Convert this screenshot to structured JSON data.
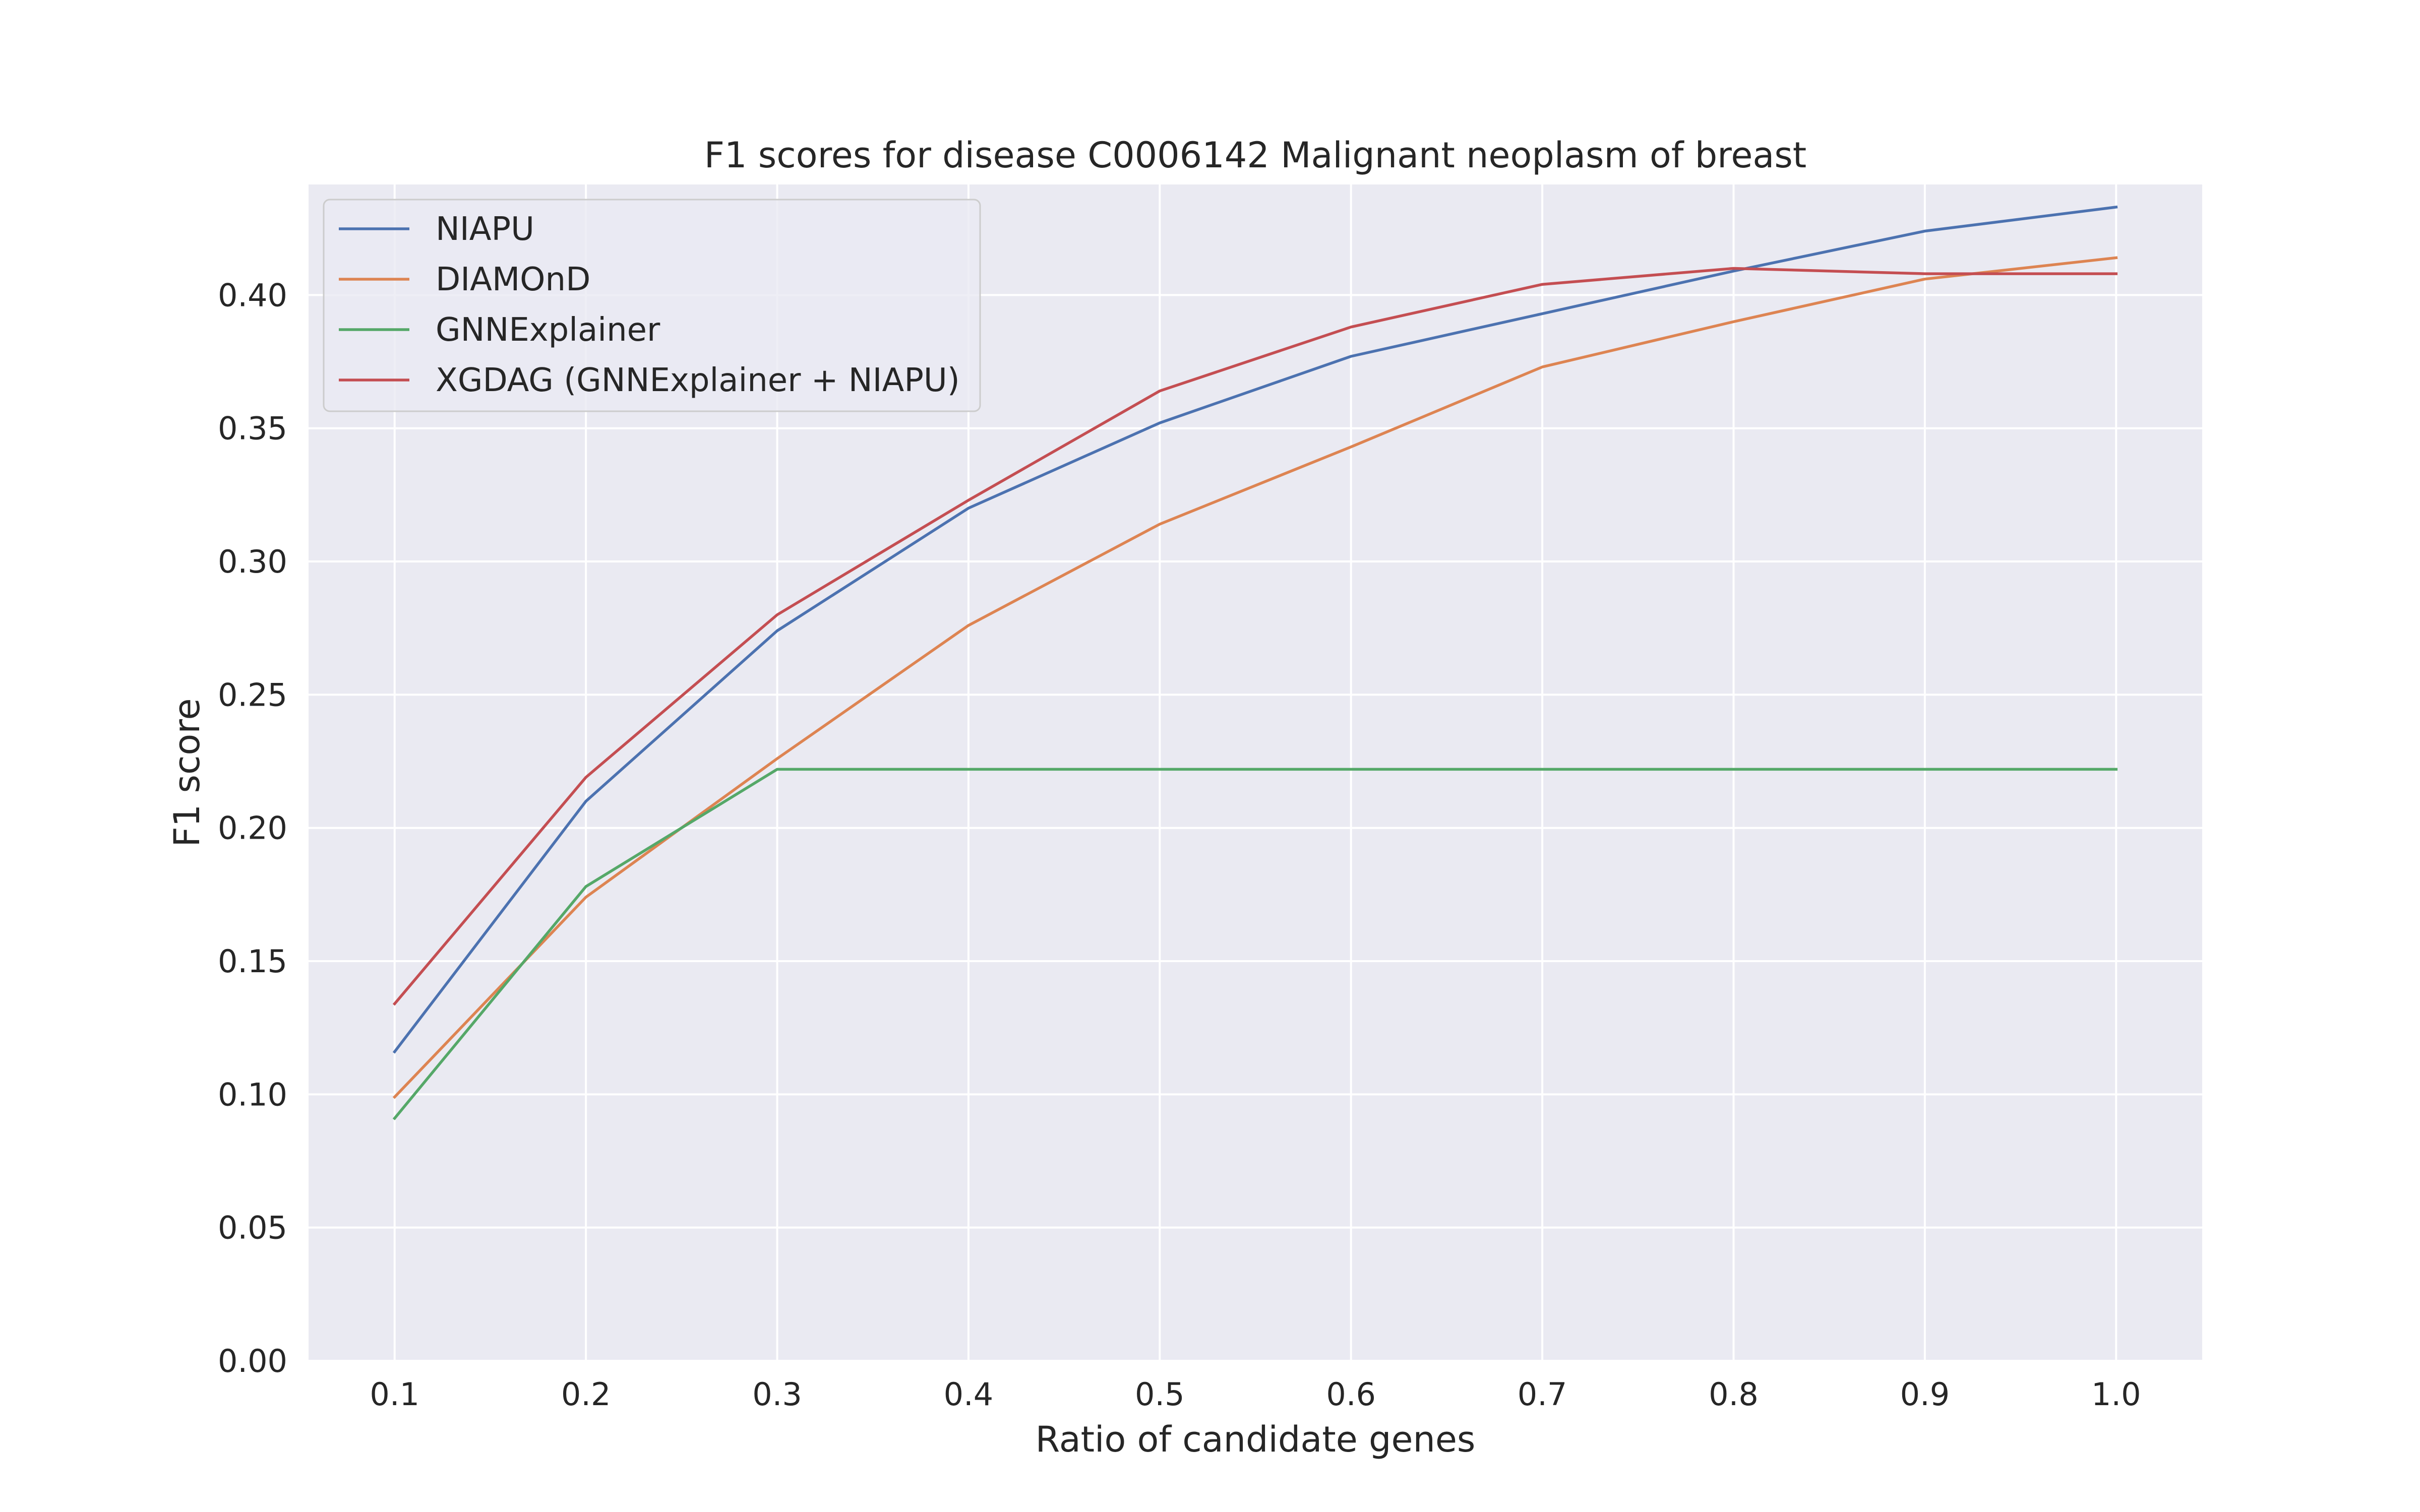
{
  "chart_data": {
    "type": "line",
    "title": "F1 scores for disease C0006142 Malignant neoplasm of breast",
    "xlabel": "Ratio of candidate genes",
    "ylabel": "F1 score",
    "x": [
      0.1,
      0.2,
      0.3,
      0.4,
      0.5,
      0.6,
      0.7,
      0.8,
      0.9,
      1.0
    ],
    "x_ticks": [
      "0.1",
      "0.2",
      "0.3",
      "0.4",
      "0.5",
      "0.6",
      "0.7",
      "0.8",
      "0.9",
      "1.0"
    ],
    "y_ticks": [
      "0.00",
      "0.05",
      "0.10",
      "0.15",
      "0.20",
      "0.25",
      "0.30",
      "0.35",
      "0.40"
    ],
    "xlim": [
      0.055,
      1.045
    ],
    "ylim": [
      0.0,
      0.4415
    ],
    "grid": true,
    "legend_position": "top-left",
    "series": [
      {
        "name": "NIAPU",
        "color": "#4c72b0",
        "values": [
          0.116,
          0.21,
          0.274,
          0.32,
          0.352,
          0.377,
          0.393,
          0.409,
          0.424,
          0.433
        ]
      },
      {
        "name": "DIAMOnD",
        "color": "#dd8452",
        "values": [
          0.099,
          0.174,
          0.226,
          0.276,
          0.314,
          0.343,
          0.373,
          0.39,
          0.406,
          0.414
        ]
      },
      {
        "name": "GNNExplainer",
        "color": "#55a868",
        "values": [
          0.091,
          0.178,
          0.222,
          0.222,
          0.222,
          0.222,
          0.222,
          0.222,
          0.222,
          0.222
        ]
      },
      {
        "name": "XGDAG (GNNExplainer + NIAPU)",
        "color": "#c44e52",
        "values": [
          0.134,
          0.219,
          0.28,
          0.323,
          0.364,
          0.388,
          0.404,
          0.41,
          0.408,
          0.408
        ]
      }
    ]
  }
}
